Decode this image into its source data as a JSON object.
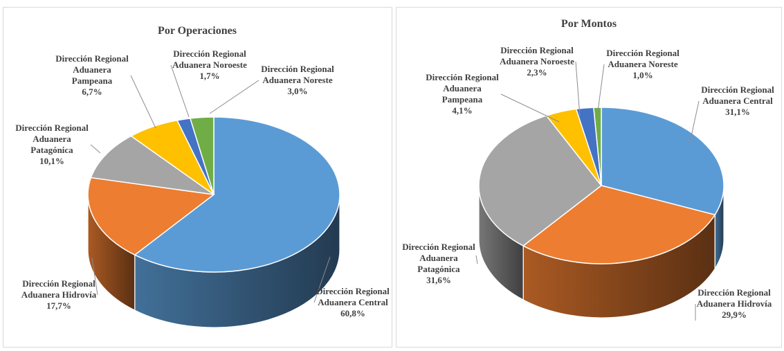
{
  "chart_data": [
    {
      "type": "pie",
      "title": "Por Operaciones",
      "slices": [
        {
          "name": [
            "Dirección Regional",
            "Aduanera Central"
          ],
          "value": 60.8,
          "label": "60,8%",
          "color": "#5b9bd5"
        },
        {
          "name": [
            "Dirección Regional",
            "Aduanera Hidrovía"
          ],
          "value": 17.7,
          "label": "17,7%",
          "color": "#ed7d31"
        },
        {
          "name": [
            "Dirección Regional",
            "Aduanera",
            "Patagónica"
          ],
          "value": 10.1,
          "label": "10,1%",
          "color": "#a5a5a5"
        },
        {
          "name": [
            "Dirección Regional",
            "Aduanera",
            "Pampeana"
          ],
          "value": 6.7,
          "label": "6,7%",
          "color": "#ffc000"
        },
        {
          "name": [
            "Dirección Regional",
            "Aduanera Noroeste"
          ],
          "value": 1.7,
          "label": "1,7%",
          "color": "#4472c4"
        },
        {
          "name": [
            "Dirección Regional",
            "Aduanera Noreste"
          ],
          "value": 3.0,
          "label": "3,0%",
          "color": "#70ad47"
        }
      ]
    },
    {
      "type": "pie",
      "title": "Por Montos",
      "slices": [
        {
          "name": [
            "Dirección Regional",
            "Aduanera Central"
          ],
          "value": 31.1,
          "label": "31,1%",
          "color": "#5b9bd5"
        },
        {
          "name": [
            "Dirección Regional",
            "Aduanera Hidrovía"
          ],
          "value": 29.9,
          "label": "29,9%",
          "color": "#ed7d31"
        },
        {
          "name": [
            "Dirección Regional",
            "Aduanera",
            "Patagónica"
          ],
          "value": 31.6,
          "label": "31,6%",
          "color": "#a5a5a5"
        },
        {
          "name": [
            "Dirección Regional",
            "Aduanera",
            "Pampeana"
          ],
          "value": 4.1,
          "label": "4,1%",
          "color": "#ffc000"
        },
        {
          "name": [
            "Dirección Regional",
            "Aduanera Noroeste"
          ],
          "value": 2.3,
          "label": "2,3%",
          "color": "#4472c4"
        },
        {
          "name": [
            "Dirección Regional",
            "Aduanera Noreste"
          ],
          "value": 1.0,
          "label": "1,0%",
          "color": "#70ad47"
        }
      ]
    }
  ]
}
